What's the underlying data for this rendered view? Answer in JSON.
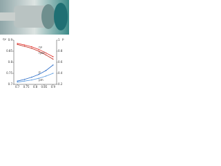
{
  "chart_data": {
    "type": "line",
    "y_label": "ηv",
    "y2_label": "p",
    "x": [
      0.7,
      0.74,
      0.78,
      0.82,
      0.86,
      0.9
    ],
    "xlim": [
      0.68,
      0.92
    ],
    "xticks": [
      0.7,
      0.75,
      0.8,
      0.85,
      0.9
    ],
    "ylim": [
      0.7,
      0.9
    ],
    "yticks": [
      0.7,
      0.75,
      0.8,
      0.85,
      0.9
    ],
    "y2lim": [
      0.2,
      1.0
    ],
    "y2ticks": [
      0.2,
      0.4,
      0.6,
      0.8,
      1.0
    ],
    "series": [
      {
        "name": "ηv",
        "color": "#e0201a",
        "values": [
          0.885,
          0.878,
          0.87,
          0.858,
          0.842,
          0.825
        ]
      },
      {
        "name": "ηvol",
        "color": "#c0281a",
        "values": [
          0.88,
          0.872,
          0.863,
          0.85,
          0.833,
          0.814
        ]
      },
      {
        "name": "p",
        "color": "#2a6cc8",
        "axis": "y2",
        "values": [
          0.26,
          0.29,
          0.33,
          0.38,
          0.45,
          0.55
        ]
      },
      {
        "name": "pm",
        "color": "#5a9ae0",
        "axis": "y2",
        "values": [
          0.24,
          0.26,
          0.28,
          0.31,
          0.35,
          0.4
        ]
      }
    ]
  }
}
